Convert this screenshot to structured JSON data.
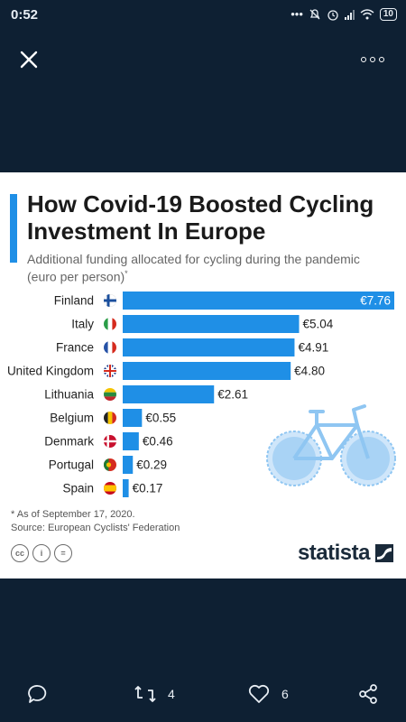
{
  "status_bar": {
    "time": "0:52",
    "battery": "10",
    "icons": [
      "more-notifications-icon",
      "mute-icon",
      "alarm-icon",
      "signal-icon",
      "wifi-icon",
      "battery-icon"
    ]
  },
  "toolbar": {
    "close_icon": "close-icon",
    "more_icon": "more-options-icon"
  },
  "card": {
    "title": "How Covid-19 Boosted Cycling Investment In Europe",
    "subtitle": "Additional funding allocated for cycling during the pandemic (euro per person)",
    "subtitle_mark": "*",
    "note": "* As of September 17, 2020.",
    "source": "Source: European Cyclists' Federation",
    "license_icons": [
      "cc-icon",
      "by-icon",
      "nd-icon"
    ],
    "brand": "statista",
    "accent_color": "#1f8fe6"
  },
  "chart_data": {
    "type": "bar",
    "orientation": "horizontal",
    "categories": [
      "Finland",
      "Italy",
      "France",
      "United Kingdom",
      "Lithuania",
      "Belgium",
      "Denmark",
      "Portugal",
      "Spain"
    ],
    "values": [
      7.76,
      5.04,
      4.91,
      4.8,
      2.61,
      0.55,
      0.46,
      0.29,
      0.17
    ],
    "value_labels": [
      "€7.76",
      "€5.04",
      "€4.91",
      "€4.80",
      "€2.61",
      "€0.55",
      "€0.46",
      "€0.29",
      "€0.17"
    ],
    "xlim": [
      0,
      7.76
    ],
    "bar_color": "#1f8fe6",
    "grid": false,
    "legend": "none"
  },
  "actions": {
    "reply_icon": "comment-icon",
    "retweet_icon": "retweet-icon",
    "retweet_count": "4",
    "like_icon": "heart-icon",
    "like_count": "6",
    "share_icon": "share-icon"
  }
}
